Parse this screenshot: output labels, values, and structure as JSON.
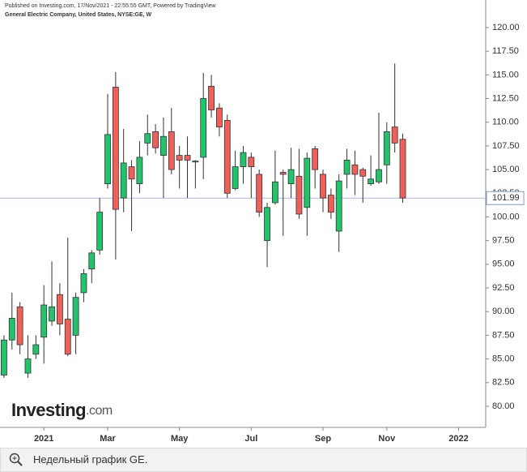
{
  "chart_data": {
    "type": "candlestick",
    "header": "Published on Investing.com, 17/Nov/2021 - 22:55:55 GMT, Powered by TradingView",
    "subtitle": "General Electric Company, United States, NYSE:GE, W",
    "logo": "Investing",
    "logo_suffix": ".com",
    "caption": "Недельный график GE.",
    "up_color": "#22c36b",
    "down_color": "#f0605a",
    "last_price": 101.99,
    "ylim": [
      77.77,
      122.91
    ],
    "yticks": [
      {
        "value": 80,
        "label": "80.00"
      },
      {
        "value": 82.5,
        "label": "82.50"
      },
      {
        "value": 85,
        "label": "85.00"
      },
      {
        "value": 87.5,
        "label": "87.50"
      },
      {
        "value": 90,
        "label": "90.00"
      },
      {
        "value": 92.5,
        "label": "92.50"
      },
      {
        "value": 95,
        "label": "95.00"
      },
      {
        "value": 97.5,
        "label": "97.50"
      },
      {
        "value": 100,
        "label": "100.00"
      },
      {
        "value": 102.5,
        "label": "102.50"
      },
      {
        "value": 105,
        "label": "105.00"
      },
      {
        "value": 107.5,
        "label": "107.50"
      },
      {
        "value": 110,
        "label": "110.00"
      },
      {
        "value": 112.5,
        "label": "112.50"
      },
      {
        "value": 115,
        "label": "115.00"
      },
      {
        "value": 117.5,
        "label": "117.50"
      },
      {
        "value": 120,
        "label": "120.00"
      }
    ],
    "xlim": [
      -0.5,
      60.2
    ],
    "xticks": [
      {
        "value": 5,
        "label": "2021"
      },
      {
        "value": 13,
        "label": "Mar"
      },
      {
        "value": 22,
        "label": "May"
      },
      {
        "value": 31,
        "label": "Jul"
      },
      {
        "value": 40,
        "label": "Sep"
      },
      {
        "value": 48,
        "label": "Nov"
      },
      {
        "value": 57,
        "label": "2022"
      }
    ],
    "candles": [
      {
        "o": 83.3,
        "h": 87.5,
        "l": 83,
        "c": 87
      },
      {
        "o": 87,
        "h": 92,
        "l": 86,
        "c": 89.3
      },
      {
        "o": 90.5,
        "h": 91,
        "l": 85.5,
        "c": 86.5
      },
      {
        "o": 83.5,
        "h": 87.5,
        "l": 83,
        "c": 85
      },
      {
        "o": 85.5,
        "h": 87.5,
        "l": 85,
        "c": 86.5
      },
      {
        "o": 87.3,
        "h": 92.8,
        "l": 84.5,
        "c": 90.7
      },
      {
        "o": 89,
        "h": 95.3,
        "l": 88.5,
        "c": 90.5
      },
      {
        "o": 91.8,
        "h": 93,
        "l": 87.5,
        "c": 88.7
      },
      {
        "o": 89.2,
        "h": 97.8,
        "l": 85.3,
        "c": 85.5
      },
      {
        "o": 87.5,
        "h": 92,
        "l": 85.5,
        "c": 91.5
      },
      {
        "o": 92,
        "h": 94.5,
        "l": 91,
        "c": 94
      },
      {
        "o": 94.5,
        "h": 96.5,
        "l": 93,
        "c": 96.2
      },
      {
        "o": 96.5,
        "h": 102,
        "l": 96,
        "c": 100.5
      },
      {
        "o": 103.5,
        "h": 113,
        "l": 103,
        "c": 108.7
      },
      {
        "o": 113.7,
        "h": 115.3,
        "l": 95.5,
        "c": 100.8
      },
      {
        "o": 102,
        "h": 109.3,
        "l": 100.5,
        "c": 105.7
      },
      {
        "o": 105.3,
        "h": 106,
        "l": 98.5,
        "c": 104
      },
      {
        "o": 103.5,
        "h": 108,
        "l": 102.5,
        "c": 106.3
      },
      {
        "o": 107.8,
        "h": 110.8,
        "l": 106.5,
        "c": 108.8
      },
      {
        "o": 109,
        "h": 109.8,
        "l": 106.7,
        "c": 107.3
      },
      {
        "o": 106.5,
        "h": 110.5,
        "l": 102,
        "c": 108.5
      },
      {
        "o": 109,
        "h": 111.5,
        "l": 104.5,
        "c": 105
      },
      {
        "o": 106.5,
        "h": 107.5,
        "l": 103,
        "c": 106
      },
      {
        "o": 106.5,
        "h": 108.5,
        "l": 102,
        "c": 106
      },
      {
        "o": 105.8,
        "h": 106,
        "l": 103,
        "c": 105.9
      },
      {
        "o": 106.3,
        "h": 115.2,
        "l": 104,
        "c": 112.5
      },
      {
        "o": 113.8,
        "h": 115,
        "l": 110.5,
        "c": 111.3
      },
      {
        "o": 111.5,
        "h": 112,
        "l": 108.5,
        "c": 109.5
      },
      {
        "o": 110.2,
        "h": 110.8,
        "l": 102,
        "c": 102.5
      },
      {
        "o": 103,
        "h": 107,
        "l": 102.8,
        "c": 105.3
      },
      {
        "o": 105.3,
        "h": 107.5,
        "l": 103.5,
        "c": 106.8
      },
      {
        "o": 106.3,
        "h": 106.8,
        "l": 102,
        "c": 105.3
      },
      {
        "o": 104.5,
        "h": 105,
        "l": 100,
        "c": 100.5
      },
      {
        "o": 97.5,
        "h": 101.5,
        "l": 94.7,
        "c": 101
      },
      {
        "o": 101.5,
        "h": 107,
        "l": 101.3,
        "c": 103.7
      },
      {
        "o": 104.7,
        "h": 105,
        "l": 98,
        "c": 104.5
      },
      {
        "o": 103.5,
        "h": 107.3,
        "l": 102,
        "c": 105
      },
      {
        "o": 104.3,
        "h": 107.2,
        "l": 99.8,
        "c": 100.3
      },
      {
        "o": 101,
        "h": 106.8,
        "l": 98,
        "c": 106.2
      },
      {
        "o": 107.2,
        "h": 107.5,
        "l": 103,
        "c": 105
      },
      {
        "o": 104.5,
        "h": 105,
        "l": 100.5,
        "c": 102
      },
      {
        "o": 102.3,
        "h": 103,
        "l": 99.8,
        "c": 100.5
      },
      {
        "o": 98.5,
        "h": 104.5,
        "l": 96.3,
        "c": 103.8
      },
      {
        "o": 104.5,
        "h": 107.2,
        "l": 103,
        "c": 106
      },
      {
        "o": 105.5,
        "h": 107,
        "l": 102.3,
        "c": 104.5
      },
      {
        "o": 105,
        "h": 105.2,
        "l": 101.5,
        "c": 104.3
      },
      {
        "o": 103.5,
        "h": 106.5,
        "l": 103.3,
        "c": 104
      },
      {
        "o": 103.7,
        "h": 111,
        "l": 103.5,
        "c": 105
      },
      {
        "o": 105.5,
        "h": 110,
        "l": 103.5,
        "c": 109
      },
      {
        "o": 109.5,
        "h": 116.2,
        "l": 106.8,
        "c": 107.8
      },
      {
        "o": 108.2,
        "h": 108.8,
        "l": 101.5,
        "c": 102
      }
    ]
  }
}
